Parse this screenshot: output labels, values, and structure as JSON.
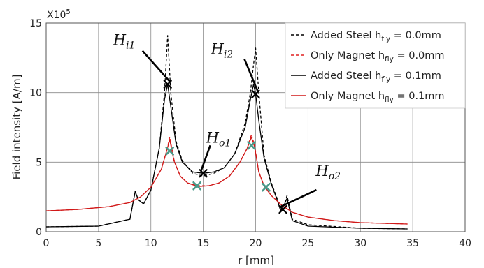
{
  "chart_data": {
    "type": "line",
    "xlabel": "r [mm]",
    "ylabel": "Field intensity [A/m]",
    "y_multiplier_label": "X10",
    "y_multiplier_exp": "5",
    "xlim": [
      0,
      40
    ],
    "ylim": [
      0,
      15
    ],
    "xticks": [
      "0",
      "5",
      "10",
      "15",
      "20",
      "25",
      "30",
      "35",
      "40"
    ],
    "yticks": [
      "0",
      "5",
      "10",
      "15"
    ],
    "legend_position": "top-right",
    "grid": true,
    "legend": [
      {
        "label": "Added Steel  h",
        "sub": "fly",
        "suffix": " = 0.0mm",
        "color": "#000000",
        "dash": "4,3"
      },
      {
        "label": "Only Magnet h",
        "sub": "fly",
        "suffix": " = 0.0mm",
        "color": "#e02020",
        "dash": "4,3"
      },
      {
        "label": "Added Steel  h",
        "sub": "fly",
        "suffix": " = 0.1mm",
        "color": "#000000",
        "dash": ""
      },
      {
        "label": "Only Magnet h",
        "sub": "fly",
        "suffix": " = 0.1mm",
        "color": "#d01818",
        "dash": ""
      }
    ],
    "series": [
      {
        "name": "Added Steel hfly = 0.0mm",
        "color": "#000000",
        "dash": "4,3",
        "x": [
          0,
          5,
          8.0,
          8.5,
          8.8,
          9.3,
          10.0,
          10.8,
          11.3,
          11.6,
          11.9,
          12.4,
          13.0,
          14.0,
          15.0,
          16.0,
          17.0,
          18.0,
          19.0,
          19.5,
          19.8,
          20.0,
          20.3,
          20.8,
          21.5,
          22.0,
          22.4,
          22.7,
          23.0,
          23.5,
          25.0,
          30.0,
          34.5
        ],
        "y": [
          0.35,
          0.4,
          0.9,
          2.9,
          2.3,
          2.0,
          3.0,
          6.0,
          10.0,
          14.1,
          10.0,
          6.5,
          5.1,
          4.2,
          4.0,
          4.2,
          4.6,
          5.6,
          7.8,
          10.0,
          12.0,
          13.2,
          10.0,
          5.5,
          3.5,
          2.5,
          1.5,
          1.9,
          2.6,
          0.9,
          0.5,
          0.25,
          0.2
        ]
      },
      {
        "name": "Only Magnet hfly = 0.0mm",
        "color": "#e02020",
        "dash": "4,3",
        "x": [
          0,
          3,
          6,
          8,
          9,
          10,
          11,
          11.5,
          11.8,
          12.2,
          12.8,
          13.5,
          14.5,
          15.5,
          16.5,
          17.5,
          18.5,
          19.2,
          19.6,
          19.9,
          20.3,
          20.8,
          21.5,
          22.5,
          23.5,
          25,
          27.5,
          30,
          34.5
        ],
        "y": [
          1.5,
          1.6,
          1.8,
          2.1,
          2.5,
          3.2,
          4.5,
          5.8,
          6.8,
          5.2,
          4.0,
          3.5,
          3.3,
          3.3,
          3.5,
          4.0,
          5.0,
          6.0,
          7.0,
          6.2,
          4.3,
          3.3,
          2.6,
          1.9,
          1.4,
          1.05,
          0.8,
          0.65,
          0.55
        ]
      },
      {
        "name": "Added Steel hfly = 0.1mm",
        "color": "#000000",
        "dash": "",
        "x": [
          0,
          5,
          8.0,
          8.5,
          8.8,
          9.3,
          10.0,
          10.8,
          11.3,
          11.6,
          11.9,
          12.4,
          13.0,
          14.0,
          15.0,
          16.0,
          17.0,
          18.0,
          19.0,
          19.5,
          19.8,
          20.0,
          20.3,
          20.8,
          21.5,
          22.0,
          22.4,
          22.7,
          23.0,
          23.5,
          25.0,
          30.0,
          34.5
        ],
        "y": [
          0.35,
          0.4,
          0.9,
          2.9,
          2.3,
          2.0,
          3.0,
          6.0,
          9.5,
          10.6,
          9.0,
          6.3,
          5.0,
          4.3,
          4.2,
          4.3,
          4.6,
          5.6,
          7.5,
          9.5,
          10.6,
          9.9,
          8.0,
          5.3,
          3.4,
          2.4,
          1.5,
          1.9,
          2.4,
          0.8,
          0.4,
          0.25,
          0.2
        ]
      },
      {
        "name": "Only Magnet hfly = 0.1mm",
        "color": "#d01818",
        "dash": "",
        "x": [
          0,
          3,
          6,
          8,
          9,
          10,
          11,
          11.5,
          11.8,
          12.2,
          12.8,
          13.5,
          14.5,
          15.5,
          16.5,
          17.5,
          18.5,
          19.2,
          19.6,
          19.9,
          20.3,
          20.8,
          21.5,
          22.5,
          23.5,
          25,
          27.5,
          30,
          34.5
        ],
        "y": [
          1.5,
          1.6,
          1.8,
          2.1,
          2.5,
          3.2,
          4.5,
          5.8,
          6.6,
          5.1,
          4.0,
          3.5,
          3.25,
          3.3,
          3.5,
          4.0,
          5.0,
          6.0,
          6.8,
          6.1,
          4.3,
          3.3,
          2.6,
          1.9,
          1.4,
          1.05,
          0.8,
          0.65,
          0.55
        ]
      }
    ],
    "markers_black": [
      {
        "x": 11.6,
        "y": 10.6
      },
      {
        "x": 15.0,
        "y": 4.2
      },
      {
        "x": 20.0,
        "y": 9.9
      },
      {
        "x": 22.6,
        "y": 1.6
      }
    ],
    "markers_green": [
      {
        "x": 11.8,
        "y": 5.8
      },
      {
        "x": 14.4,
        "y": 3.3
      },
      {
        "x": 19.6,
        "y": 6.2
      },
      {
        "x": 21.0,
        "y": 3.2
      }
    ],
    "marker_green_color": "#4a9a8a",
    "annotations": [
      {
        "main": "H",
        "sub": "i1",
        "point": {
          "x": 11.6,
          "y": 10.6
        }
      },
      {
        "main": "H",
        "sub": "i2",
        "point": {
          "x": 20.0,
          "y": 9.9
        }
      },
      {
        "main": "H",
        "sub": "o1",
        "point": {
          "x": 15.0,
          "y": 4.2
        }
      },
      {
        "main": "H",
        "sub": "o2",
        "point": {
          "x": 22.6,
          "y": 1.6
        }
      }
    ]
  }
}
